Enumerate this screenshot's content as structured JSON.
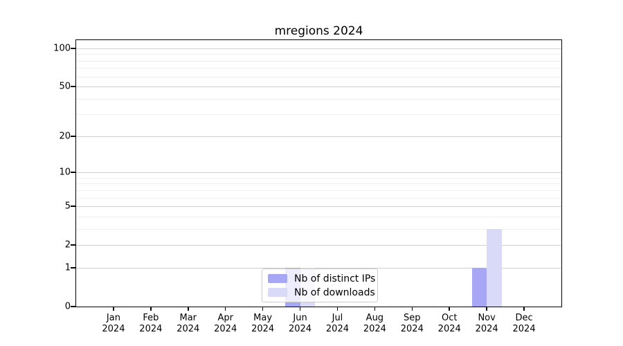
{
  "title": "mregions 2024",
  "colors": {
    "distinct_ips": "#a7a7f6",
    "downloads": "#d9d9f8",
    "grid_major": "#cfcfcf",
    "grid_minor": "#efefef",
    "axis": "#000000",
    "legend_border": "#cccccc"
  },
  "legend": {
    "items": [
      {
        "label": "Nb of distinct IPs",
        "color_key": "distinct_ips"
      },
      {
        "label": "Nb of downloads",
        "color_key": "downloads"
      }
    ],
    "position": "lower center inside plot"
  },
  "chart_data": {
    "type": "bar",
    "title": "mregions 2024",
    "xlabel": "",
    "ylabel": "",
    "yscale": "log1p",
    "ylim": [
      0,
      116
    ],
    "xlim_slots": 13,
    "grid": true,
    "months": [
      "Jan",
      "Feb",
      "Mar",
      "Apr",
      "May",
      "Jun",
      "Jul",
      "Aug",
      "Sep",
      "Oct",
      "Nov",
      "Dec"
    ],
    "year_label": "2024",
    "categories": [
      "Jan 2024",
      "Feb 2024",
      "Mar 2024",
      "Apr 2024",
      "May 2024",
      "Jun 2024",
      "Jul 2024",
      "Aug 2024",
      "Sep 2024",
      "Oct 2024",
      "Nov 2024",
      "Dec 2024"
    ],
    "y_major_ticks": [
      0,
      1,
      2,
      5,
      10,
      20,
      50,
      100
    ],
    "y_minor_gridlines": [
      3,
      4,
      6,
      7,
      8,
      9,
      30,
      40,
      60,
      70,
      80,
      90
    ],
    "series": [
      {
        "name": "Nb of distinct IPs",
        "color_key": "distinct_ips",
        "values": [
          0,
          0,
          0,
          0,
          0,
          1,
          0,
          0,
          0,
          0,
          1,
          0
        ]
      },
      {
        "name": "Nb of downloads",
        "color_key": "downloads",
        "values": [
          0,
          0,
          0,
          0,
          0,
          1,
          0,
          0,
          0,
          0,
          3,
          0
        ]
      }
    ]
  }
}
